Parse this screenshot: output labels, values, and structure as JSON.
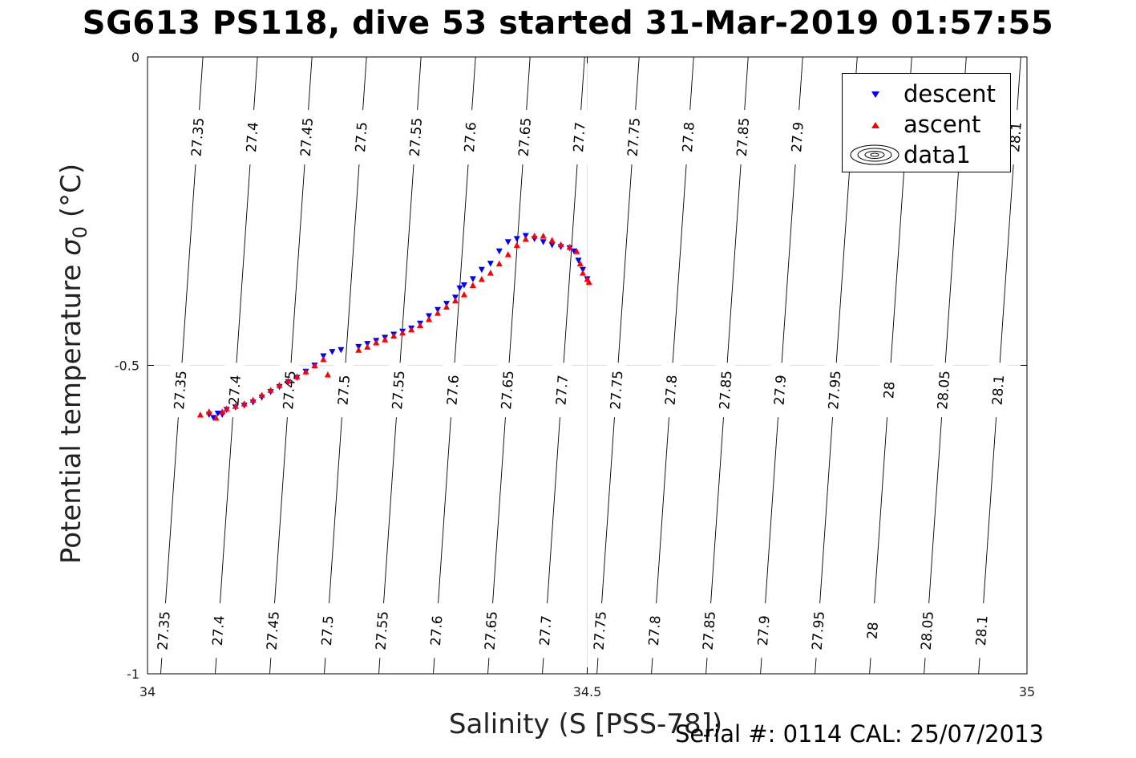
{
  "title": "SG613 PS118, dive 53 started 31-Mar-2019 01:57:55",
  "footer": {
    "serial": "Serial #: 0114  CAL: 25/07/2013"
  },
  "chart_data": {
    "type": "scatter",
    "title": "SG613 PS118, dive 53 started 31-Mar-2019 01:57:55",
    "xlabel": "Salinity (S [PSS-78])",
    "ylabel_text": "Potential temperature ",
    "ylabel_sigma": "σ",
    "ylabel_sub": "0",
    "ylabel_unit": " (°C)",
    "xlim": [
      34,
      35
    ],
    "ylim": [
      -1,
      0
    ],
    "xticks": [
      34,
      34.5,
      35
    ],
    "xtick_labels": [
      "34",
      "34.5",
      "35"
    ],
    "yticks": [
      0,
      -0.5,
      -1
    ],
    "ytick_labels": [
      "0",
      "-0.5",
      "-1"
    ],
    "grid": true,
    "legend": {
      "position": "top-right",
      "entries": [
        {
          "label": "descent",
          "marker": "triangle-down",
          "color": "#0000ff"
        },
        {
          "label": "ascent",
          "marker": "triangle-up",
          "color": "#ff0000"
        },
        {
          "label": "data1",
          "marker": "contour",
          "color": "#000000"
        }
      ]
    },
    "contours": [
      {
        "level": "27.35",
        "x_top": 34.063,
        "x_bottom": 34.015
      },
      {
        "level": "27.4",
        "x_top": 34.125,
        "x_bottom": 34.077
      },
      {
        "level": "27.45",
        "x_top": 34.187,
        "x_bottom": 34.139
      },
      {
        "level": "27.5",
        "x_top": 34.249,
        "x_bottom": 34.201
      },
      {
        "level": "27.55",
        "x_top": 34.311,
        "x_bottom": 34.263
      },
      {
        "level": "27.6",
        "x_top": 34.373,
        "x_bottom": 34.325
      },
      {
        "level": "27.65",
        "x_top": 34.435,
        "x_bottom": 34.387
      },
      {
        "level": "27.7",
        "x_top": 34.497,
        "x_bottom": 34.449
      },
      {
        "level": "27.75",
        "x_top": 34.559,
        "x_bottom": 34.511
      },
      {
        "level": "27.8",
        "x_top": 34.621,
        "x_bottom": 34.573
      },
      {
        "level": "27.85",
        "x_top": 34.683,
        "x_bottom": 34.635
      },
      {
        "level": "27.9",
        "x_top": 34.745,
        "x_bottom": 34.697
      },
      {
        "level": "27.95",
        "x_top": 34.807,
        "x_bottom": 34.759
      },
      {
        "level": "28",
        "x_top": 34.869,
        "x_bottom": 34.821
      },
      {
        "level": "28.05",
        "x_top": 34.931,
        "x_bottom": 34.883
      },
      {
        "level": "28.1",
        "x_top": 34.993,
        "x_bottom": 34.945
      }
    ],
    "contour_label_rows_y": [
      -0.13,
      -0.54,
      -0.93
    ],
    "series": [
      {
        "name": "descent",
        "color": "#0000ff",
        "marker": "triangle-down",
        "x": [
          34.07,
          34.075,
          34.08,
          34.085,
          34.09,
          34.1,
          34.11,
          34.12,
          34.13,
          34.14,
          34.15,
          34.16,
          34.17,
          34.18,
          34.19,
          34.2,
          34.21,
          34.22,
          34.24,
          34.25,
          34.26,
          34.27,
          34.28,
          34.29,
          34.3,
          34.31,
          34.32,
          34.33,
          34.34,
          34.35,
          34.355,
          34.36,
          34.37,
          34.38,
          34.39,
          34.4,
          34.41,
          34.42,
          34.43,
          34.44,
          34.45,
          34.46,
          34.47,
          34.48,
          34.485,
          34.49,
          34.495,
          34.5
        ],
        "y": [
          -0.58,
          -0.585,
          -0.578,
          -0.58,
          -0.572,
          -0.568,
          -0.565,
          -0.56,
          -0.552,
          -0.543,
          -0.535,
          -0.527,
          -0.52,
          -0.51,
          -0.5,
          -0.485,
          -0.478,
          -0.475,
          -0.47,
          -0.465,
          -0.46,
          -0.455,
          -0.45,
          -0.445,
          -0.44,
          -0.432,
          -0.42,
          -0.41,
          -0.4,
          -0.39,
          -0.375,
          -0.37,
          -0.36,
          -0.345,
          -0.335,
          -0.315,
          -0.3,
          -0.295,
          -0.29,
          -0.295,
          -0.3,
          -0.305,
          -0.308,
          -0.31,
          -0.315,
          -0.33,
          -0.345,
          -0.36
        ]
      },
      {
        "name": "ascent",
        "color": "#ff0000",
        "marker": "triangle-up",
        "x": [
          34.06,
          34.07,
          34.078,
          34.085,
          34.09,
          34.1,
          34.11,
          34.12,
          34.13,
          34.14,
          34.15,
          34.16,
          34.17,
          34.18,
          34.19,
          34.2,
          34.205,
          34.24,
          34.25,
          34.26,
          34.27,
          34.28,
          34.29,
          34.3,
          34.31,
          34.32,
          34.33,
          34.34,
          34.35,
          34.36,
          34.37,
          34.38,
          34.39,
          34.4,
          34.41,
          34.42,
          34.43,
          34.44,
          34.45,
          34.46,
          34.47,
          34.48,
          34.488,
          34.492,
          34.495,
          34.5,
          34.502
        ],
        "y": [
          -0.58,
          -0.575,
          -0.585,
          -0.575,
          -0.57,
          -0.566,
          -0.562,
          -0.556,
          -0.548,
          -0.54,
          -0.532,
          -0.525,
          -0.518,
          -0.51,
          -0.5,
          -0.49,
          -0.515,
          -0.475,
          -0.47,
          -0.463,
          -0.458,
          -0.452,
          -0.447,
          -0.442,
          -0.435,
          -0.425,
          -0.415,
          -0.405,
          -0.395,
          -0.385,
          -0.37,
          -0.36,
          -0.35,
          -0.335,
          -0.32,
          -0.305,
          -0.295,
          -0.29,
          -0.29,
          -0.297,
          -0.304,
          -0.308,
          -0.315,
          -0.335,
          -0.35,
          -0.36,
          -0.365
        ]
      }
    ]
  }
}
